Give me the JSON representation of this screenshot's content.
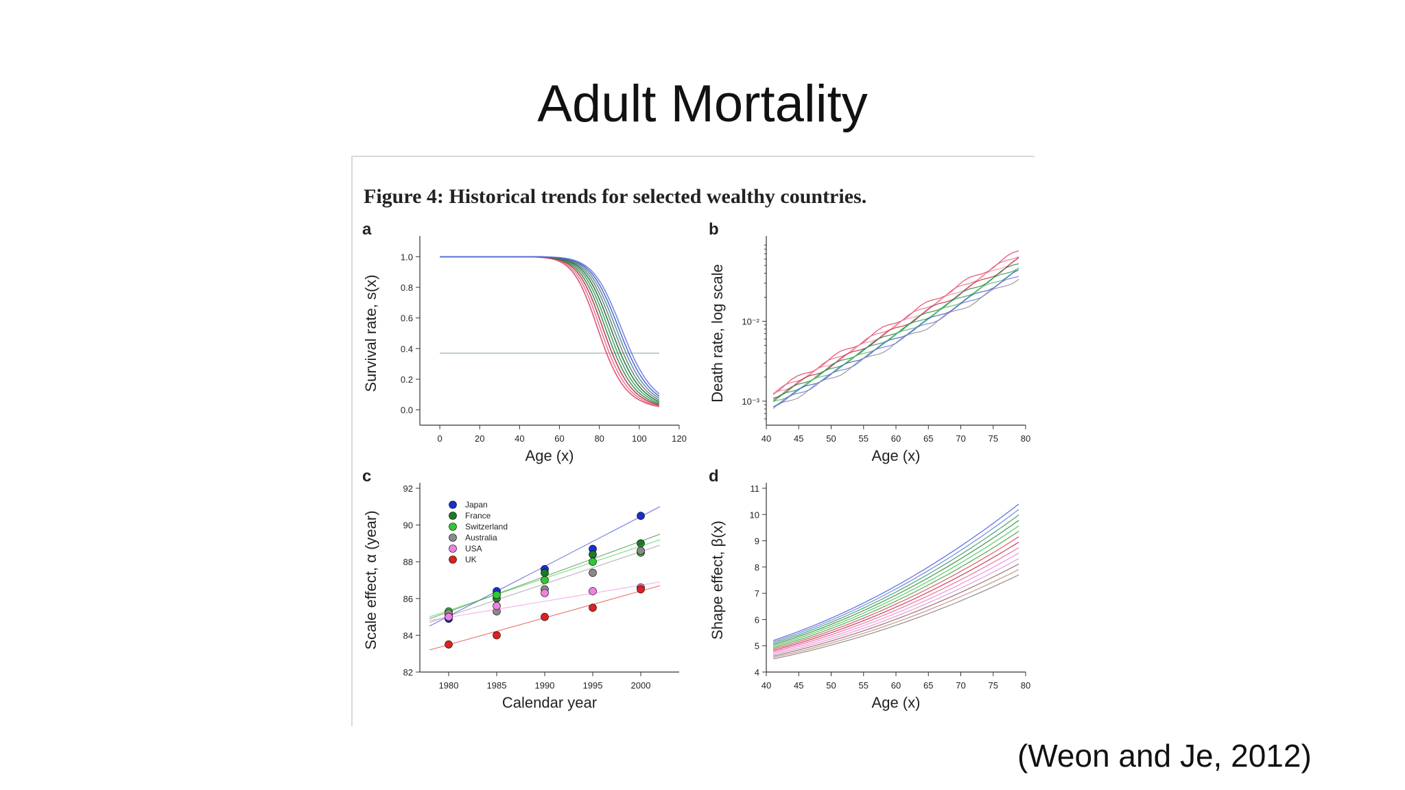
{
  "slide": {
    "title": "Adult Mortality",
    "citation": "(Weon and Je, 2012)"
  },
  "figure": {
    "caption": "Figure 4: Historical trends for selected wealthy countries."
  },
  "chart_data": [
    {
      "panel": "a",
      "type": "line",
      "xlabel": "Age (x)",
      "ylabel": "Survival rate, s(x)",
      "xlim": [
        -10,
        120
      ],
      "ylim": [
        -0.1,
        1.1
      ],
      "xticks": [
        "0",
        "20",
        "40",
        "60",
        "80",
        "100",
        "120"
      ],
      "yticks": [
        "0.0",
        "0.2",
        "0.4",
        "0.6",
        "0.8",
        "1.0"
      ],
      "reference_line": {
        "y": 0.37,
        "x_range": [
          0,
          110
        ],
        "color": "#9ab89a"
      },
      "series_colors": [
        "#e0305c",
        "#e86080",
        "#b02040",
        "#2a7a3a",
        "#1f9a4a",
        "#0f5f2f",
        "#6a6a6a",
        "#3a8a8a",
        "#3a4fd0",
        "#6070e0"
      ],
      "median_age_range": [
        80,
        92
      ],
      "x_end": 110
    },
    {
      "panel": "b",
      "type": "line",
      "yscale": "log",
      "xlabel": "Age (x)",
      "ylabel": "Death rate, log scale",
      "xlim": [
        40,
        80
      ],
      "xticks": [
        "40",
        "45",
        "50",
        "55",
        "60",
        "65",
        "70",
        "75",
        "80"
      ],
      "yticks": [
        "10⁻³",
        "10⁻²"
      ],
      "series_colors": [
        "#e0305c",
        "#e86080",
        "#f08aa0",
        "#b02040",
        "#2a7a3a",
        "#1f9a4a",
        "#40c050",
        "#3a4fd0",
        "#6070e0",
        "#8a8a8a"
      ],
      "start_range": [
        0.0008,
        0.0013
      ],
      "end_range": [
        0.035,
        0.075
      ]
    },
    {
      "panel": "c",
      "type": "scatter",
      "xlabel": "Calendar year",
      "ylabel": "Scale effect, α (year)",
      "xlim": [
        1977,
        2004
      ],
      "ylim": [
        82,
        92
      ],
      "xticks": [
        "1980",
        "1985",
        "1990",
        "1995",
        "2000"
      ],
      "yticks": [
        "82",
        "84",
        "86",
        "88",
        "90",
        "92"
      ],
      "x": [
        1980,
        1985,
        1990,
        1995,
        2000
      ],
      "series": [
        {
          "name": "Japan",
          "color": "#1a2fd0",
          "values": [
            84.9,
            86.4,
            87.6,
            88.7,
            90.5
          ],
          "fit": [
            84.5,
            91.0
          ]
        },
        {
          "name": "France",
          "color": "#1a7a2a",
          "values": [
            85.1,
            86.0,
            87.4,
            88.4,
            89.0
          ],
          "fit": [
            84.9,
            89.5
          ]
        },
        {
          "name": "Switzerland",
          "color": "#30c830",
          "values": [
            85.3,
            86.2,
            87.0,
            88.0,
            88.5
          ],
          "fit": [
            85.0,
            89.2
          ]
        },
        {
          "name": "Australia",
          "color": "#8a8a8a",
          "values": [
            85.2,
            85.3,
            86.5,
            87.4,
            88.6
          ],
          "fit": [
            84.7,
            88.9
          ]
        },
        {
          "name": "USA",
          "color": "#f080e0",
          "values": [
            85.0,
            85.6,
            86.3,
            86.4,
            86.6
          ],
          "fit": [
            84.8,
            86.9
          ]
        },
        {
          "name": "UK",
          "color": "#e02020",
          "values": [
            83.5,
            84.0,
            85.0,
            85.5,
            86.5
          ],
          "fit": [
            83.2,
            86.7
          ]
        }
      ]
    },
    {
      "panel": "d",
      "type": "line",
      "xlabel": "Age (x)",
      "ylabel": "Shape effect, β(x)",
      "xlim": [
        40,
        80
      ],
      "ylim": [
        4,
        11
      ],
      "xticks": [
        "40",
        "45",
        "50",
        "55",
        "60",
        "65",
        "70",
        "75",
        "80"
      ],
      "yticks": [
        "4",
        "5",
        "6",
        "7",
        "8",
        "9",
        "10",
        "11"
      ],
      "series_colors": [
        "#3a4fd0",
        "#6070e0",
        "#1f9a4a",
        "#2a7a3a",
        "#40c050",
        "#30a030",
        "#e0305c",
        "#b02040",
        "#e86080",
        "#f080e0",
        "#d890d0",
        "#8a5a5a",
        "#c08080",
        "#7a7a7a"
      ],
      "start_range": [
        4.5,
        5.2
      ],
      "end_range": [
        7.7,
        10.4
      ]
    }
  ]
}
